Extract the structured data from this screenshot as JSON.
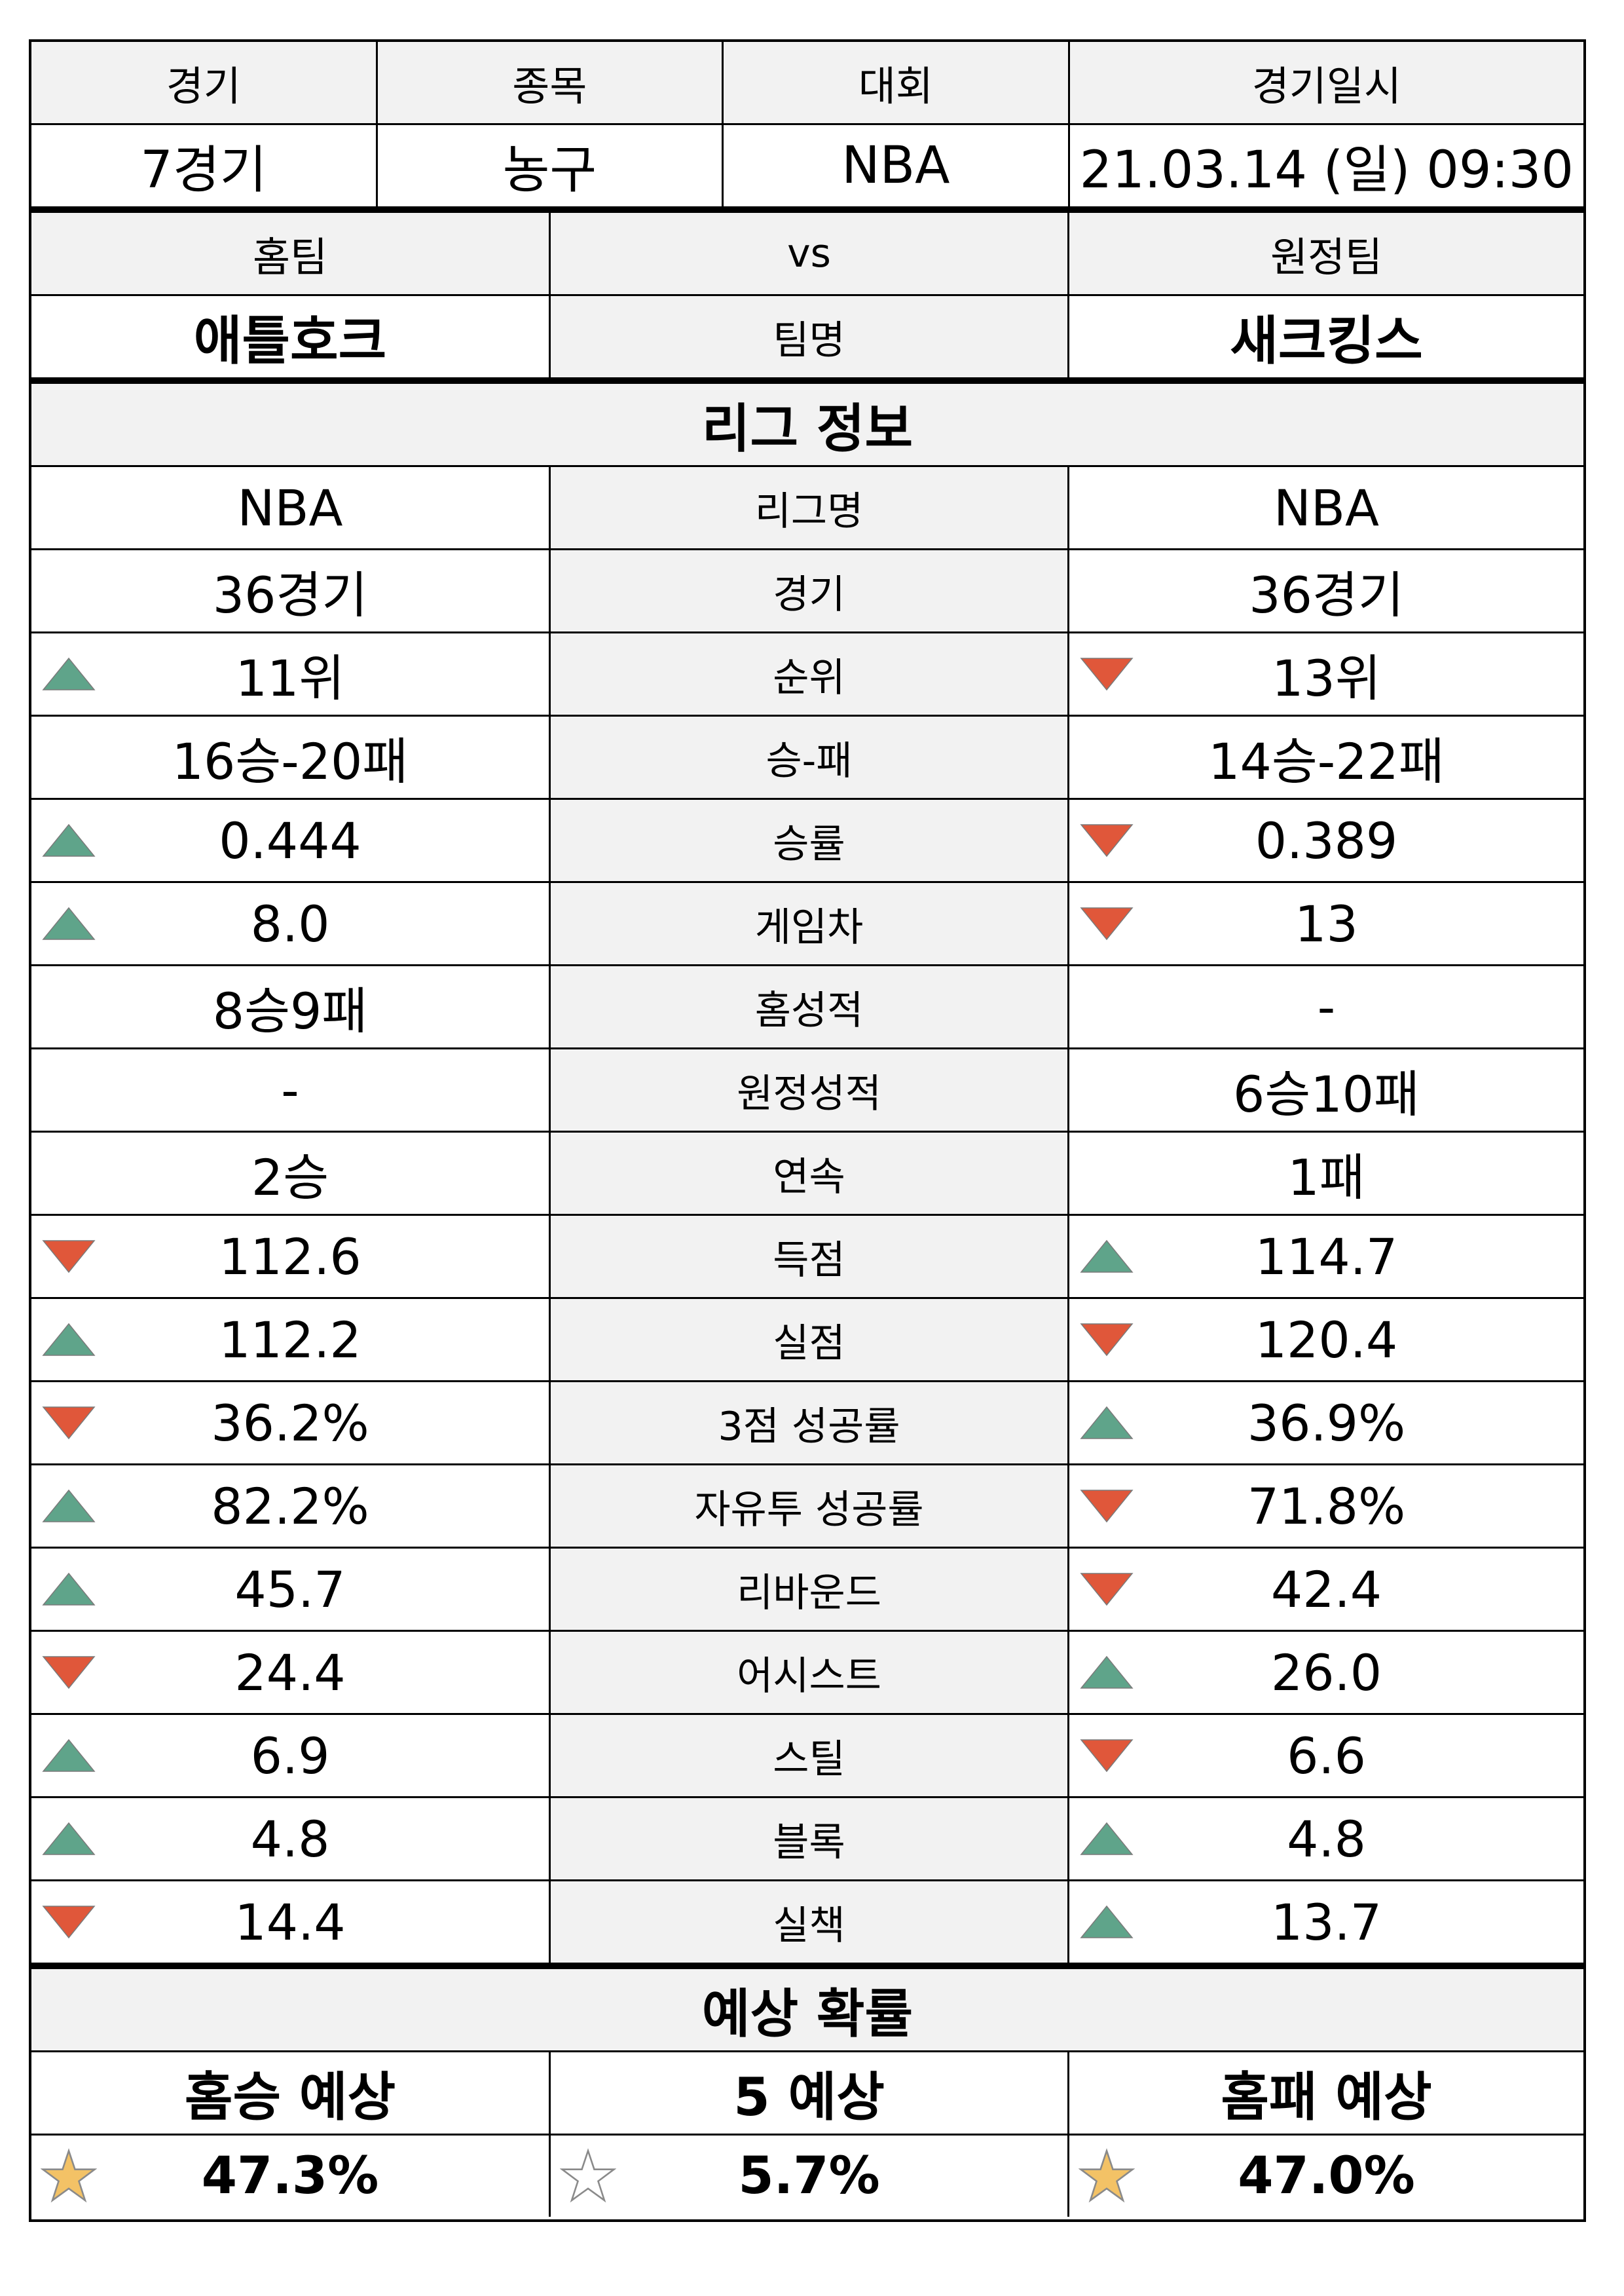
{
  "match_header": {
    "columns": [
      "경기",
      "종목",
      "대회",
      "경기일시"
    ],
    "values": [
      "7경기",
      "농구",
      "NBA",
      "21.03.14 (일) 09:30"
    ]
  },
  "teams": {
    "home_label": "홈팀",
    "vs_label": "vs",
    "away_label": "원정팀",
    "home_name": "애틀호크",
    "name_label": "팀명",
    "away_name": "새크킹스"
  },
  "league_section": {
    "title": "리그 정보",
    "rows": [
      {
        "label": "리그명",
        "home": "NBA",
        "away": "NBA",
        "home_icon": "",
        "away_icon": ""
      },
      {
        "label": "경기",
        "home": "36경기",
        "away": "36경기",
        "home_icon": "",
        "away_icon": ""
      },
      {
        "label": "순위",
        "home": "11위",
        "away": "13위",
        "home_icon": "up-triangle-icon",
        "away_icon": "down-triangle-icon"
      },
      {
        "label": "승-패",
        "home": "16승-20패",
        "away": "14승-22패",
        "home_icon": "",
        "away_icon": ""
      },
      {
        "label": "승률",
        "home": "0.444",
        "away": "0.389",
        "home_icon": "up-triangle-icon",
        "away_icon": "down-triangle-icon"
      },
      {
        "label": "게임차",
        "home": "8.0",
        "away": "13",
        "home_icon": "up-triangle-icon",
        "away_icon": "down-triangle-icon"
      },
      {
        "label": "홈성적",
        "home": "8승9패",
        "away": "-",
        "home_icon": "",
        "away_icon": ""
      },
      {
        "label": "원정성적",
        "home": "-",
        "away": "6승10패",
        "home_icon": "",
        "away_icon": ""
      },
      {
        "label": "연속",
        "home": "2승",
        "away": "1패",
        "home_icon": "",
        "away_icon": ""
      },
      {
        "label": "득점",
        "home": "112.6",
        "away": "114.7",
        "home_icon": "down-triangle-icon",
        "away_icon": "up-triangle-icon"
      },
      {
        "label": "실점",
        "home": "112.2",
        "away": "120.4",
        "home_icon": "up-triangle-icon",
        "away_icon": "down-triangle-icon"
      },
      {
        "label": "3점 성공률",
        "home": "36.2%",
        "away": "36.9%",
        "home_icon": "down-triangle-icon",
        "away_icon": "up-triangle-icon"
      },
      {
        "label": "자유투 성공률",
        "home": "82.2%",
        "away": "71.8%",
        "home_icon": "up-triangle-icon",
        "away_icon": "down-triangle-icon"
      },
      {
        "label": "리바운드",
        "home": "45.7",
        "away": "42.4",
        "home_icon": "up-triangle-icon",
        "away_icon": "down-triangle-icon"
      },
      {
        "label": "어시스트",
        "home": "24.4",
        "away": "26.0",
        "home_icon": "down-triangle-icon",
        "away_icon": "up-triangle-icon"
      },
      {
        "label": "스틸",
        "home": "6.9",
        "away": "6.6",
        "home_icon": "up-triangle-icon",
        "away_icon": "down-triangle-icon"
      },
      {
        "label": "블록",
        "home": "4.8",
        "away": "4.8",
        "home_icon": "up-triangle-icon",
        "away_icon": "up-triangle-icon"
      },
      {
        "label": "실책",
        "home": "14.4",
        "away": "13.7",
        "home_icon": "down-triangle-icon",
        "away_icon": "up-triangle-icon"
      }
    ]
  },
  "prediction_section": {
    "title": "예상 확률",
    "items": [
      {
        "label": "홈승 예상",
        "value": "47.3%",
        "icon": "filled-star-icon"
      },
      {
        "label": "5 예상",
        "value": "5.7%",
        "icon": "empty-star-icon"
      },
      {
        "label": "홈패 예상",
        "value": "47.0%",
        "icon": "filled-star-icon"
      }
    ]
  },
  "colors": {
    "up_triangle": "#5fa48a",
    "down_triangle": "#e0573a",
    "star_fill": "#f3c266",
    "header_gray": "#f2f2f2"
  }
}
